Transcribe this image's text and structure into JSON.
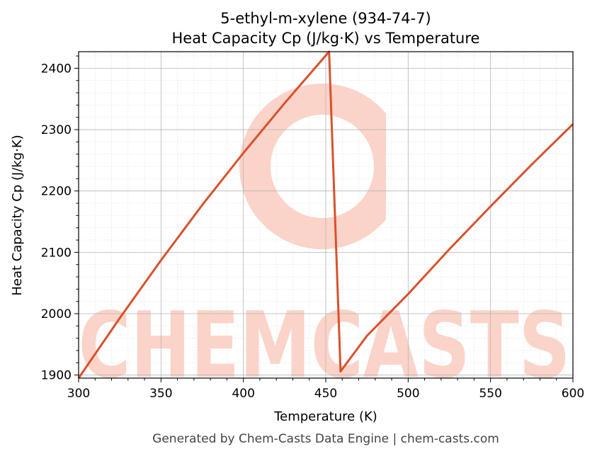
{
  "chart_data": {
    "type": "line",
    "title": "5-ethyl-m-xylene (934-74-7)",
    "subtitle": "Heat Capacity Cp (J/kg·K) vs Temperature",
    "xlabel": "Temperature (K)",
    "ylabel": "Heat Capacity Cp (J/kg·K)",
    "xlim": [
      300,
      600
    ],
    "ylim": [
      1895,
      2427
    ],
    "x_ticks": [
      300,
      350,
      400,
      450,
      500,
      550,
      600
    ],
    "y_ticks": [
      1900,
      2000,
      2100,
      2200,
      2300,
      2400
    ],
    "grid": true,
    "series": [
      {
        "color": "#d9512c",
        "x": [
          300,
          325,
          350,
          375,
          400,
          425,
          452,
          459,
          475,
          500,
          525,
          550,
          575,
          600
        ],
        "y": [
          1895,
          1993,
          2087,
          2177,
          2262,
          2343,
          2427,
          1906,
          1964,
          2032,
          2105,
          2175,
          2243,
          2309
        ]
      }
    ]
  },
  "watermark": {
    "text": "CHEMCASTS",
    "color": "#fbd3c8"
  },
  "footer": "Generated by Chem-Casts Data Engine | chem-casts.com"
}
